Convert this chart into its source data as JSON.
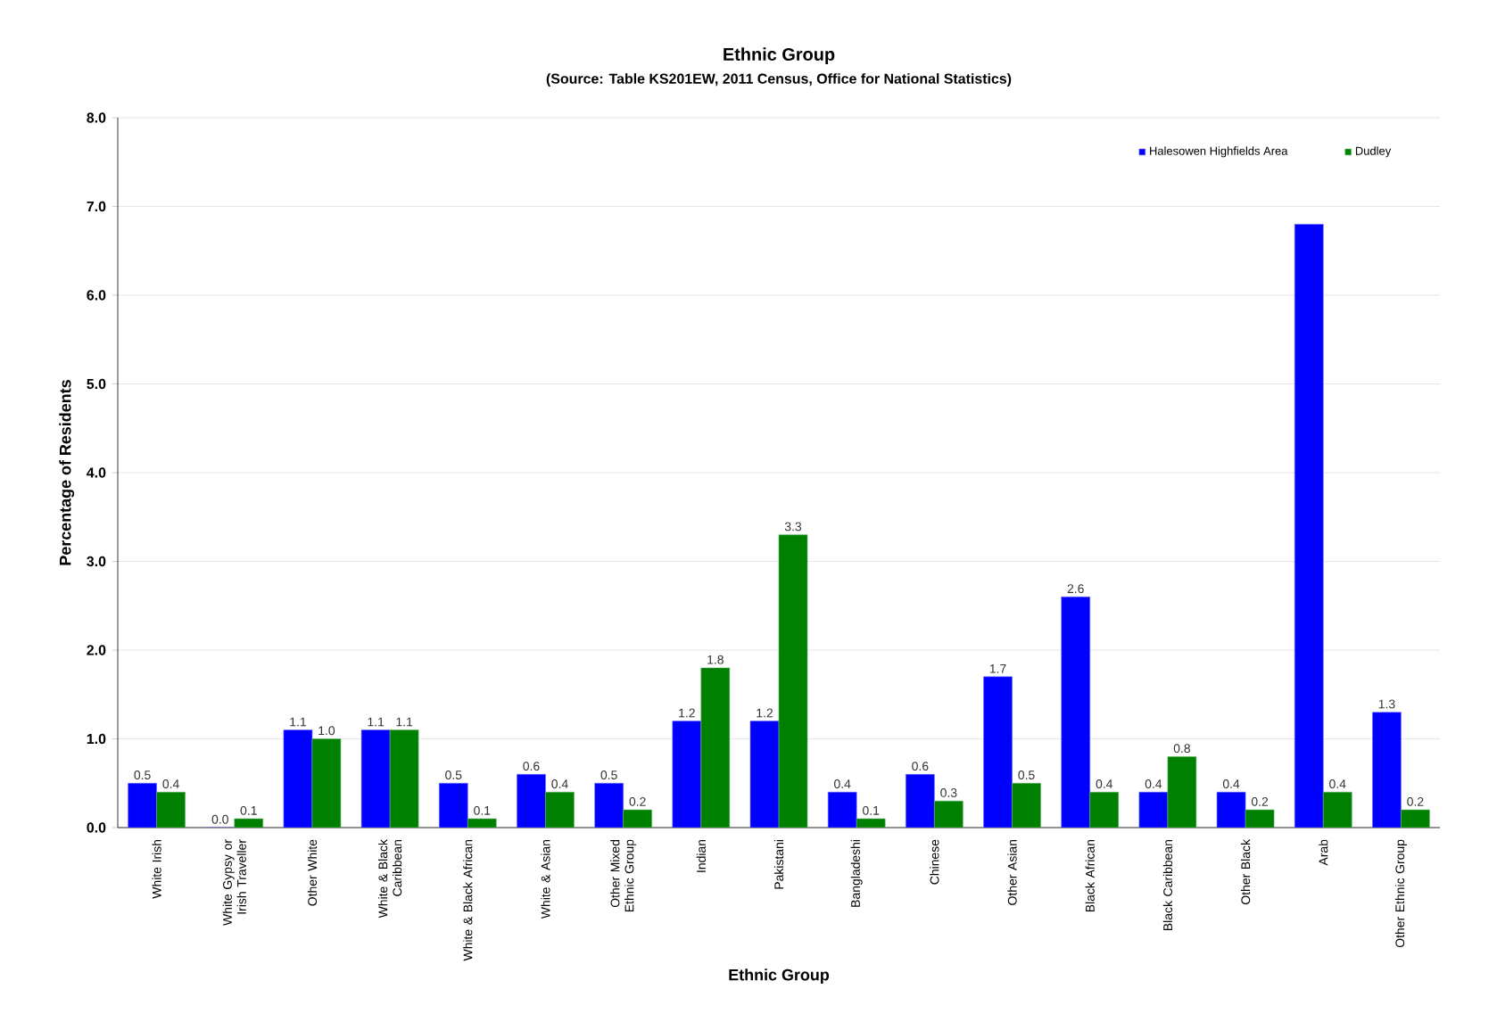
{
  "chart_data": {
    "type": "bar",
    "title": "Ethnic Group",
    "subtitle": "(Source: Table KS201EW, 2011 Census, Office for National Statistics)",
    "xlabel": "Ethnic Group",
    "ylabel": "Percentage of Residents",
    "categories": [
      "White Irish",
      "White Gypsy or Irish Traveller",
      "Other White",
      "White & Black Caribbean",
      "White & Black African",
      "White & Asian",
      "Other Mixed Ethnic Group",
      "Indian",
      "Pakistani",
      "Bangladeshi",
      "Chinese",
      "Other Asian",
      "Black African",
      "Black Caribbean",
      "Other Black",
      "Arab",
      "Other Ethnic Group"
    ],
    "series": [
      {
        "name": "Halesowen Highfields Area",
        "color": "#0000ff",
        "values": [
          0.5,
          0.0,
          1.1,
          1.1,
          0.5,
          0.6,
          0.5,
          1.2,
          1.2,
          0.4,
          0.6,
          1.7,
          2.6,
          0.4,
          0.4,
          6.8,
          1.3
        ],
        "value_labels": [
          "0.5",
          "0.0",
          "1.1",
          "1.1",
          "0.5",
          "0.6",
          "0.5",
          "1.2",
          "1.2",
          "0.4",
          "0.6",
          "1.7",
          "2.6",
          "0.4",
          "0.4",
          null,
          "1.3"
        ]
      },
      {
        "name": "Dudley",
        "color": "#008000",
        "values": [
          0.4,
          0.1,
          1.0,
          1.1,
          0.1,
          0.4,
          0.2,
          1.8,
          3.3,
          0.1,
          0.3,
          0.5,
          0.4,
          0.8,
          0.2,
          0.4,
          0.2
        ],
        "value_labels": [
          "0.4",
          "0.1",
          "1.0",
          "1.1",
          "0.1",
          "0.4",
          "0.2",
          "1.8",
          "3.3",
          "0.1",
          "0.3",
          "0.5",
          "0.4",
          "0.8",
          "0.2",
          "0.4",
          "0.2"
        ]
      }
    ],
    "ylim": [
      0,
      8
    ],
    "yticks": [
      {
        "value": 0,
        "label": "0.0"
      },
      {
        "value": 1,
        "label": "1.0"
      },
      {
        "value": 2,
        "label": "2.0"
      },
      {
        "value": 3,
        "label": "3.0"
      },
      {
        "value": 4,
        "label": "4.0"
      },
      {
        "value": 5,
        "label": "5.0"
      },
      {
        "value": 6,
        "label": "6.0"
      },
      {
        "value": 7,
        "label": "7.0"
      },
      {
        "value": 8,
        "label": "8.0"
      }
    ],
    "grid": "y",
    "legend": "top right"
  }
}
